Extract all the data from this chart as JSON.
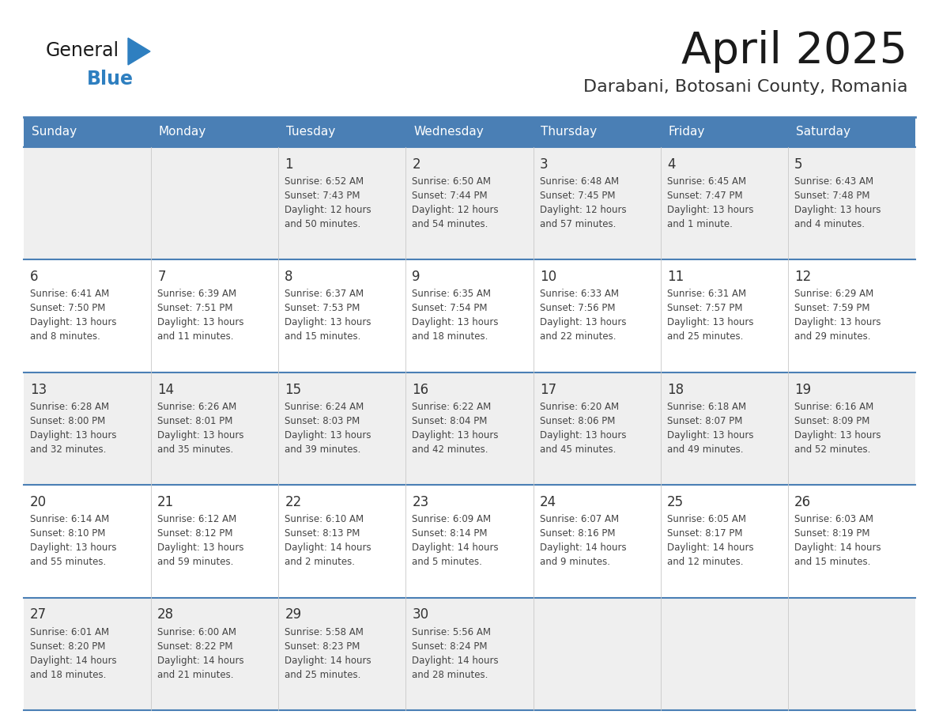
{
  "title": "April 2025",
  "subtitle": "Darabani, Botosani County, Romania",
  "days_of_week": [
    "Sunday",
    "Monday",
    "Tuesday",
    "Wednesday",
    "Thursday",
    "Friday",
    "Saturday"
  ],
  "header_bg": "#4A7FB5",
  "header_text": "#FFFFFF",
  "row_bg_even": "#EFEFEF",
  "row_bg_odd": "#FFFFFF",
  "day_num_color": "#333333",
  "cell_text_color": "#444444",
  "border_color": "#4A7FB5",
  "title_color": "#1a1a1a",
  "subtitle_color": "#333333",
  "logo_general_color": "#1a1a1a",
  "logo_blue_color": "#2E7FC0",
  "weeks": [
    [
      {
        "day": null,
        "info": null
      },
      {
        "day": null,
        "info": null
      },
      {
        "day": 1,
        "info": "Sunrise: 6:52 AM\nSunset: 7:43 PM\nDaylight: 12 hours\nand 50 minutes."
      },
      {
        "day": 2,
        "info": "Sunrise: 6:50 AM\nSunset: 7:44 PM\nDaylight: 12 hours\nand 54 minutes."
      },
      {
        "day": 3,
        "info": "Sunrise: 6:48 AM\nSunset: 7:45 PM\nDaylight: 12 hours\nand 57 minutes."
      },
      {
        "day": 4,
        "info": "Sunrise: 6:45 AM\nSunset: 7:47 PM\nDaylight: 13 hours\nand 1 minute."
      },
      {
        "day": 5,
        "info": "Sunrise: 6:43 AM\nSunset: 7:48 PM\nDaylight: 13 hours\nand 4 minutes."
      }
    ],
    [
      {
        "day": 6,
        "info": "Sunrise: 6:41 AM\nSunset: 7:50 PM\nDaylight: 13 hours\nand 8 minutes."
      },
      {
        "day": 7,
        "info": "Sunrise: 6:39 AM\nSunset: 7:51 PM\nDaylight: 13 hours\nand 11 minutes."
      },
      {
        "day": 8,
        "info": "Sunrise: 6:37 AM\nSunset: 7:53 PM\nDaylight: 13 hours\nand 15 minutes."
      },
      {
        "day": 9,
        "info": "Sunrise: 6:35 AM\nSunset: 7:54 PM\nDaylight: 13 hours\nand 18 minutes."
      },
      {
        "day": 10,
        "info": "Sunrise: 6:33 AM\nSunset: 7:56 PM\nDaylight: 13 hours\nand 22 minutes."
      },
      {
        "day": 11,
        "info": "Sunrise: 6:31 AM\nSunset: 7:57 PM\nDaylight: 13 hours\nand 25 minutes."
      },
      {
        "day": 12,
        "info": "Sunrise: 6:29 AM\nSunset: 7:59 PM\nDaylight: 13 hours\nand 29 minutes."
      }
    ],
    [
      {
        "day": 13,
        "info": "Sunrise: 6:28 AM\nSunset: 8:00 PM\nDaylight: 13 hours\nand 32 minutes."
      },
      {
        "day": 14,
        "info": "Sunrise: 6:26 AM\nSunset: 8:01 PM\nDaylight: 13 hours\nand 35 minutes."
      },
      {
        "day": 15,
        "info": "Sunrise: 6:24 AM\nSunset: 8:03 PM\nDaylight: 13 hours\nand 39 minutes."
      },
      {
        "day": 16,
        "info": "Sunrise: 6:22 AM\nSunset: 8:04 PM\nDaylight: 13 hours\nand 42 minutes."
      },
      {
        "day": 17,
        "info": "Sunrise: 6:20 AM\nSunset: 8:06 PM\nDaylight: 13 hours\nand 45 minutes."
      },
      {
        "day": 18,
        "info": "Sunrise: 6:18 AM\nSunset: 8:07 PM\nDaylight: 13 hours\nand 49 minutes."
      },
      {
        "day": 19,
        "info": "Sunrise: 6:16 AM\nSunset: 8:09 PM\nDaylight: 13 hours\nand 52 minutes."
      }
    ],
    [
      {
        "day": 20,
        "info": "Sunrise: 6:14 AM\nSunset: 8:10 PM\nDaylight: 13 hours\nand 55 minutes."
      },
      {
        "day": 21,
        "info": "Sunrise: 6:12 AM\nSunset: 8:12 PM\nDaylight: 13 hours\nand 59 minutes."
      },
      {
        "day": 22,
        "info": "Sunrise: 6:10 AM\nSunset: 8:13 PM\nDaylight: 14 hours\nand 2 minutes."
      },
      {
        "day": 23,
        "info": "Sunrise: 6:09 AM\nSunset: 8:14 PM\nDaylight: 14 hours\nand 5 minutes."
      },
      {
        "day": 24,
        "info": "Sunrise: 6:07 AM\nSunset: 8:16 PM\nDaylight: 14 hours\nand 9 minutes."
      },
      {
        "day": 25,
        "info": "Sunrise: 6:05 AM\nSunset: 8:17 PM\nDaylight: 14 hours\nand 12 minutes."
      },
      {
        "day": 26,
        "info": "Sunrise: 6:03 AM\nSunset: 8:19 PM\nDaylight: 14 hours\nand 15 minutes."
      }
    ],
    [
      {
        "day": 27,
        "info": "Sunrise: 6:01 AM\nSunset: 8:20 PM\nDaylight: 14 hours\nand 18 minutes."
      },
      {
        "day": 28,
        "info": "Sunrise: 6:00 AM\nSunset: 8:22 PM\nDaylight: 14 hours\nand 21 minutes."
      },
      {
        "day": 29,
        "info": "Sunrise: 5:58 AM\nSunset: 8:23 PM\nDaylight: 14 hours\nand 25 minutes."
      },
      {
        "day": 30,
        "info": "Sunrise: 5:56 AM\nSunset: 8:24 PM\nDaylight: 14 hours\nand 28 minutes."
      },
      {
        "day": null,
        "info": null
      },
      {
        "day": null,
        "info": null
      },
      {
        "day": null,
        "info": null
      }
    ]
  ]
}
